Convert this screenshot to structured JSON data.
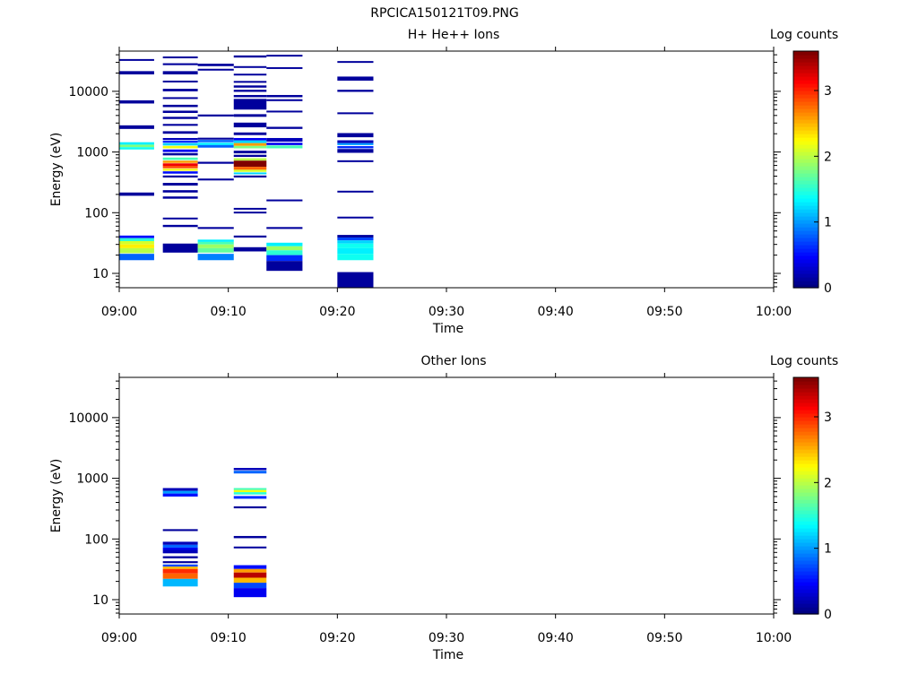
{
  "figure_title": "RPCICA150121T09.PNG",
  "colormap": [
    "#000080",
    "#0000ff",
    "#0080ff",
    "#00ffff",
    "#80ff80",
    "#ffff00",
    "#ff8000",
    "#ff0000",
    "#800000"
  ],
  "chart_data": [
    {
      "type": "heatmap",
      "title": "H+ He++ Ions",
      "xlabel": "Time",
      "ylabel": "Energy (eV)",
      "xlim": [
        "09:00",
        "10:00"
      ],
      "xtick_labels": [
        "09:00",
        "09:10",
        "09:20",
        "09:30",
        "09:40",
        "09:50",
        "10:00"
      ],
      "yscale": "log",
      "ylim": [
        5.8,
        46000
      ],
      "ytick_labels": [
        "10",
        "100",
        "1000",
        "10000"
      ],
      "colorbar_label": "Log counts",
      "colorbar_range": [
        0,
        3.6
      ],
      "colorbar_ticks": [
        "0",
        "1",
        "2",
        "3"
      ],
      "columns": [
        {
          "t_start": "09:00",
          "t_end": "09:03.2",
          "bins": [
            {
              "e_low": 32000,
              "e_high": 34000,
              "value": 0.1
            },
            {
              "e_low": 19000,
              "e_high": 21500,
              "value": 0.1
            },
            {
              "e_low": 6300,
              "e_high": 7100,
              "value": 0.1
            },
            {
              "e_low": 2400,
              "e_high": 2750,
              "value": 0.1
            },
            {
              "e_low": 1320,
              "e_high": 1450,
              "value": 1.3
            },
            {
              "e_low": 1200,
              "e_high": 1320,
              "value": 1.8
            },
            {
              "e_low": 1100,
              "e_high": 1200,
              "value": 1.4
            },
            {
              "e_low": 190,
              "e_high": 215,
              "value": 0.1
            },
            {
              "e_low": 38,
              "e_high": 42,
              "value": 0.5
            },
            {
              "e_low": 34,
              "e_high": 38,
              "value": 1.5
            },
            {
              "e_low": 30,
              "e_high": 34,
              "value": 2.1
            },
            {
              "e_low": 26,
              "e_high": 30,
              "value": 2.3
            },
            {
              "e_low": 21.5,
              "e_high": 26,
              "value": 2.0
            },
            {
              "e_low": 16.5,
              "e_high": 21,
              "value": 0.8
            }
          ]
        },
        {
          "t_start": "09:04",
          "t_end": "09:07.2",
          "bins": [
            {
              "e_low": 35000,
              "e_high": 37500,
              "value": 0.1
            },
            {
              "e_low": 27000,
              "e_high": 29000,
              "value": 0.1
            },
            {
              "e_low": 19000,
              "e_high": 21500,
              "value": 0.1
            },
            {
              "e_low": 14000,
              "e_high": 15000,
              "value": 0.1
            },
            {
              "e_low": 10000,
              "e_high": 11000,
              "value": 0.1
            },
            {
              "e_low": 7500,
              "e_high": 8000,
              "value": 0.1
            },
            {
              "e_low": 5500,
              "e_high": 6000,
              "value": 0.1
            },
            {
              "e_low": 4400,
              "e_high": 4800,
              "value": 0.1
            },
            {
              "e_low": 3500,
              "e_high": 3800,
              "value": 0.1
            },
            {
              "e_low": 2700,
              "e_high": 2900,
              "value": 0.1
            },
            {
              "e_low": 2000,
              "e_high": 2200,
              "value": 0.1
            },
            {
              "e_low": 1580,
              "e_high": 1700,
              "value": 0.2
            },
            {
              "e_low": 1420,
              "e_high": 1540,
              "value": 0.6
            },
            {
              "e_low": 1280,
              "e_high": 1400,
              "value": 1.2
            },
            {
              "e_low": 1150,
              "e_high": 1260,
              "value": 2.2
            },
            {
              "e_low": 1000,
              "e_high": 1100,
              "value": 0.4
            },
            {
              "e_low": 880,
              "e_high": 960,
              "value": 0.1
            },
            {
              "e_low": 740,
              "e_high": 810,
              "value": 1.6
            },
            {
              "e_low": 660,
              "e_high": 720,
              "value": 2.6
            },
            {
              "e_low": 590,
              "e_high": 650,
              "value": 3.2
            },
            {
              "e_low": 540,
              "e_high": 590,
              "value": 2.9
            },
            {
              "e_low": 490,
              "e_high": 530,
              "value": 2.2
            },
            {
              "e_low": 440,
              "e_high": 480,
              "value": 0.5
            },
            {
              "e_low": 380,
              "e_high": 410,
              "value": 0.1
            },
            {
              "e_low": 280,
              "e_high": 310,
              "value": 0.1
            },
            {
              "e_low": 215,
              "e_high": 235,
              "value": 0.1
            },
            {
              "e_low": 170,
              "e_high": 185,
              "value": 0.1
            },
            {
              "e_low": 78,
              "e_high": 83,
              "value": 0.1
            },
            {
              "e_low": 58,
              "e_high": 63,
              "value": 0.1
            },
            {
              "e_low": 22,
              "e_high": 31,
              "value": 0.1
            }
          ]
        },
        {
          "t_start": "09:07.2",
          "t_end": "09:10.5",
          "bins": [
            {
              "e_low": 26000,
              "e_high": 28500,
              "value": 0.1
            },
            {
              "e_low": 22000,
              "e_high": 23500,
              "value": 0.1
            },
            {
              "e_low": 3850,
              "e_high": 4150,
              "value": 0.1
            },
            {
              "e_low": 1600,
              "e_high": 1720,
              "value": 0.1
            },
            {
              "e_low": 1450,
              "e_high": 1580,
              "value": 0.8
            },
            {
              "e_low": 1300,
              "e_high": 1420,
              "value": 1.3
            },
            {
              "e_low": 1180,
              "e_high": 1300,
              "value": 0.8
            },
            {
              "e_low": 640,
              "e_high": 690,
              "value": 0.1
            },
            {
              "e_low": 340,
              "e_high": 365,
              "value": 0.1
            },
            {
              "e_low": 54,
              "e_high": 58,
              "value": 0.1
            },
            {
              "e_low": 33,
              "e_high": 36,
              "value": 1.3
            },
            {
              "e_low": 30,
              "e_high": 33,
              "value": 1.6
            },
            {
              "e_low": 26,
              "e_high": 30,
              "value": 1.9
            },
            {
              "e_low": 22,
              "e_high": 26,
              "value": 1.7
            },
            {
              "e_low": 16.5,
              "e_high": 21,
              "value": 0.9
            }
          ]
        },
        {
          "t_start": "09:10.5",
          "t_end": "09:13.5",
          "bins": [
            {
              "e_low": 36000,
              "e_high": 39000,
              "value": 0.1
            },
            {
              "e_low": 24500,
              "e_high": 26000,
              "value": 0.1
            },
            {
              "e_low": 18500,
              "e_high": 19500,
              "value": 0.1
            },
            {
              "e_low": 14000,
              "e_high": 14800,
              "value": 0.1
            },
            {
              "e_low": 11500,
              "e_high": 12500,
              "value": 0.1
            },
            {
              "e_low": 9800,
              "e_high": 10600,
              "value": 0.1
            },
            {
              "e_low": 8000,
              "e_high": 8700,
              "value": 0.1
            },
            {
              "e_low": 5000,
              "e_high": 7500,
              "value": 0.1
            },
            {
              "e_low": 3800,
              "e_high": 4200,
              "value": 0.1
            },
            {
              "e_low": 2550,
              "e_high": 3050,
              "value": 0.1
            },
            {
              "e_low": 1900,
              "e_high": 2100,
              "value": 0.1
            },
            {
              "e_low": 1550,
              "e_high": 1700,
              "value": 0.4
            },
            {
              "e_low": 1400,
              "e_high": 1550,
              "value": 1.2
            },
            {
              "e_low": 1260,
              "e_high": 1400,
              "value": 2.6
            },
            {
              "e_low": 1150,
              "e_high": 1260,
              "value": 1.8
            },
            {
              "e_low": 950,
              "e_high": 1050,
              "value": 0.1
            },
            {
              "e_low": 830,
              "e_high": 900,
              "value": 0.1
            },
            {
              "e_low": 720,
              "e_high": 790,
              "value": 2.0
            },
            {
              "e_low": 570,
              "e_high": 720,
              "value": 3.6
            },
            {
              "e_low": 510,
              "e_high": 570,
              "value": 2.8
            },
            {
              "e_low": 470,
              "e_high": 510,
              "value": 2.1
            },
            {
              "e_low": 430,
              "e_high": 460,
              "value": 1.2
            },
            {
              "e_low": 380,
              "e_high": 410,
              "value": 0.1
            },
            {
              "e_low": 113,
              "e_high": 120,
              "value": 0.1
            },
            {
              "e_low": 98,
              "e_high": 104,
              "value": 0.1
            },
            {
              "e_low": 39,
              "e_high": 42,
              "value": 0.1
            },
            {
              "e_low": 23,
              "e_high": 27,
              "value": 0.1
            }
          ]
        },
        {
          "t_start": "09:13.5",
          "t_end": "09:16.8",
          "bins": [
            {
              "e_low": 38000,
              "e_high": 40000,
              "value": 0.1
            },
            {
              "e_low": 23500,
              "e_high": 25000,
              "value": 0.1
            },
            {
              "e_low": 8000,
              "e_high": 8700,
              "value": 0.1
            },
            {
              "e_low": 6900,
              "e_high": 7400,
              "value": 0.1
            },
            {
              "e_low": 4500,
              "e_high": 4800,
              "value": 0.1
            },
            {
              "e_low": 2400,
              "e_high": 2600,
              "value": 0.1
            },
            {
              "e_low": 1480,
              "e_high": 1700,
              "value": 0.2
            },
            {
              "e_low": 1300,
              "e_high": 1420,
              "value": 0.4
            },
            {
              "e_low": 1150,
              "e_high": 1280,
              "value": 1.6
            },
            {
              "e_low": 155,
              "e_high": 165,
              "value": 0.1
            },
            {
              "e_low": 54,
              "e_high": 58,
              "value": 0.1
            },
            {
              "e_low": 28,
              "e_high": 32,
              "value": 1.3
            },
            {
              "e_low": 24,
              "e_high": 28,
              "value": 1.9
            },
            {
              "e_low": 20,
              "e_high": 24,
              "value": 1.5
            },
            {
              "e_low": 16,
              "e_high": 20,
              "value": 0.6
            },
            {
              "e_low": 11,
              "e_high": 16,
              "value": 0.1
            }
          ]
        },
        {
          "t_start": "09:20",
          "t_end": "09:23.3",
          "bins": [
            {
              "e_low": 29500,
              "e_high": 31500,
              "value": 0.1
            },
            {
              "e_low": 15000,
              "e_high": 17500,
              "value": 0.1
            },
            {
              "e_low": 9800,
              "e_high": 10600,
              "value": 0.1
            },
            {
              "e_low": 4200,
              "e_high": 4500,
              "value": 0.1
            },
            {
              "e_low": 1750,
              "e_high": 2050,
              "value": 0.1
            },
            {
              "e_low": 1400,
              "e_high": 1560,
              "value": 0.2
            },
            {
              "e_low": 1300,
              "e_high": 1400,
              "value": 1.0
            },
            {
              "e_low": 1150,
              "e_high": 1250,
              "value": 0.6
            },
            {
              "e_low": 970,
              "e_high": 1120,
              "value": 0.1
            },
            {
              "e_low": 690,
              "e_high": 730,
              "value": 0.1
            },
            {
              "e_low": 215,
              "e_high": 230,
              "value": 0.1
            },
            {
              "e_low": 82,
              "e_high": 86,
              "value": 0.1
            },
            {
              "e_low": 39,
              "e_high": 43,
              "value": 0.1
            },
            {
              "e_low": 35,
              "e_high": 39,
              "value": 0.7
            },
            {
              "e_low": 31,
              "e_high": 35,
              "value": 1.2
            },
            {
              "e_low": 26,
              "e_high": 31,
              "value": 1.4
            },
            {
              "e_low": 21,
              "e_high": 26,
              "value": 1.3
            },
            {
              "e_low": 16.5,
              "e_high": 21,
              "value": 1.4
            },
            {
              "e_low": 5.8,
              "e_high": 10.5,
              "value": 0.1
            }
          ]
        }
      ]
    },
    {
      "type": "heatmap",
      "title": "Other Ions",
      "xlabel": "Time",
      "ylabel": "Energy (eV)",
      "xlim": [
        "09:00",
        "10:00"
      ],
      "xtick_labels": [
        "09:00",
        "09:10",
        "09:20",
        "09:30",
        "09:40",
        "09:50",
        "10:00"
      ],
      "yscale": "log",
      "ylim": [
        5.8,
        46000
      ],
      "ytick_labels": [
        "10",
        "100",
        "1000",
        "10000"
      ],
      "colorbar_label": "Log counts",
      "colorbar_range": [
        0,
        3.6
      ],
      "colorbar_ticks": [
        "0",
        "1",
        "2",
        "3"
      ],
      "columns": [
        {
          "t_start": "09:04",
          "t_end": "09:07.2",
          "bins": [
            {
              "e_low": 620,
              "e_high": 690,
              "value": 0.2
            },
            {
              "e_low": 560,
              "e_high": 620,
              "value": 1.0
            },
            {
              "e_low": 500,
              "e_high": 560,
              "value": 0.5
            },
            {
              "e_low": 135,
              "e_high": 145,
              "value": 0.1
            },
            {
              "e_low": 80,
              "e_high": 90,
              "value": 0.2
            },
            {
              "e_low": 72,
              "e_high": 80,
              "value": 0.8
            },
            {
              "e_low": 66,
              "e_high": 72,
              "value": 0.4
            },
            {
              "e_low": 58,
              "e_high": 66,
              "value": 0.2
            },
            {
              "e_low": 48,
              "e_high": 52,
              "value": 0.1
            },
            {
              "e_low": 40,
              "e_high": 43,
              "value": 0.1
            },
            {
              "e_low": 35,
              "e_high": 38,
              "value": 0.7
            },
            {
              "e_low": 32,
              "e_high": 35,
              "value": 2.5
            },
            {
              "e_low": 27,
              "e_high": 32,
              "value": 3.0
            },
            {
              "e_low": 22,
              "e_high": 27,
              "value": 2.8
            },
            {
              "e_low": 16.5,
              "e_high": 22,
              "value": 1.1
            }
          ]
        },
        {
          "t_start": "09:10.5",
          "t_end": "09:13.5",
          "bins": [
            {
              "e_low": 1360,
              "e_high": 1480,
              "value": 0.2
            },
            {
              "e_low": 1200,
              "e_high": 1330,
              "value": 0.8
            },
            {
              "e_low": 640,
              "e_high": 690,
              "value": 1.6
            },
            {
              "e_low": 590,
              "e_high": 640,
              "value": 2.2
            },
            {
              "e_low": 540,
              "e_high": 590,
              "value": 1.5
            },
            {
              "e_low": 460,
              "e_high": 510,
              "value": 0.6
            },
            {
              "e_low": 320,
              "e_high": 345,
              "value": 0.1
            },
            {
              "e_low": 103,
              "e_high": 112,
              "value": 0.1
            },
            {
              "e_low": 70,
              "e_high": 75,
              "value": 0.1
            },
            {
              "e_low": 32,
              "e_high": 37,
              "value": 0.5
            },
            {
              "e_low": 28,
              "e_high": 32,
              "value": 2.6
            },
            {
              "e_low": 23,
              "e_high": 28,
              "value": 3.4
            },
            {
              "e_low": 19,
              "e_high": 23,
              "value": 2.5
            },
            {
              "e_low": 15.5,
              "e_high": 19,
              "value": 0.7
            },
            {
              "e_low": 11,
              "e_high": 15.5,
              "value": 0.4
            }
          ]
        }
      ]
    }
  ]
}
